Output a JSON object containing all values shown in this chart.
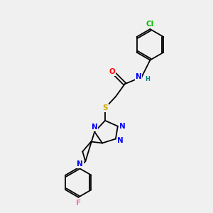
{
  "bg_color": "#f0f0f0",
  "atom_colors": {
    "N": "#0000ff",
    "O": "#ff0000",
    "S": "#ccaa00",
    "F": "#ff69b4",
    "Cl": "#00bb00",
    "H": "#008080",
    "C": "#000000"
  },
  "font_size": 7.5,
  "line_width": 1.3,
  "figsize": [
    3.0,
    3.0
  ],
  "dpi": 100
}
